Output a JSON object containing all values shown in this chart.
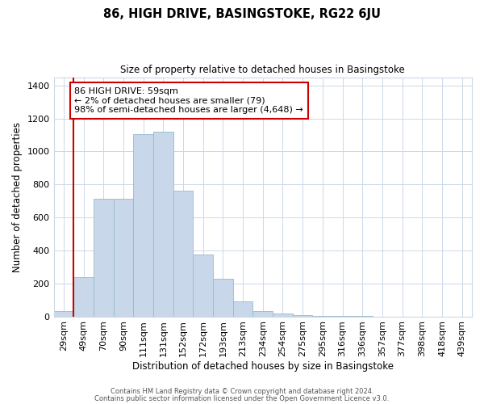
{
  "title": "86, HIGH DRIVE, BASINGSTOKE, RG22 6JU",
  "subtitle": "Size of property relative to detached houses in Basingstoke",
  "xlabel": "Distribution of detached houses by size in Basingstoke",
  "ylabel": "Number of detached properties",
  "bar_labels": [
    "29sqm",
    "49sqm",
    "70sqm",
    "90sqm",
    "111sqm",
    "131sqm",
    "152sqm",
    "172sqm",
    "193sqm",
    "213sqm",
    "234sqm",
    "254sqm",
    "275sqm",
    "295sqm",
    "316sqm",
    "336sqm",
    "357sqm",
    "377sqm",
    "398sqm",
    "418sqm",
    "439sqm"
  ],
  "bar_values": [
    30,
    240,
    715,
    715,
    1105,
    1120,
    760,
    375,
    230,
    90,
    30,
    20,
    10,
    5,
    2,
    2,
    0,
    0,
    0,
    0,
    0
  ],
  "bar_color": "#c8d8ea",
  "bar_edgecolor": "#9ab8cc",
  "property_line_color": "#cc0000",
  "annotation_text": "86 HIGH DRIVE: 59sqm\n← 2% of detached houses are smaller (79)\n98% of semi-detached houses are larger (4,648) →",
  "annotation_box_color": "#ffffff",
  "annotation_box_edgecolor": "#cc0000",
  "ylim": [
    0,
    1450
  ],
  "yticks": [
    0,
    200,
    400,
    600,
    800,
    1000,
    1200,
    1400
  ],
  "footer_line1": "Contains HM Land Registry data © Crown copyright and database right 2024.",
  "footer_line2": "Contains public sector information licensed under the Open Government Licence v3.0.",
  "background_color": "#ffffff",
  "grid_color": "#ccd8e8"
}
